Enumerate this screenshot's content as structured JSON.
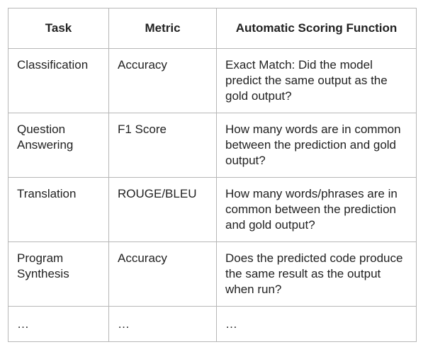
{
  "headers": {
    "task": "Task",
    "metric": "Metric",
    "function": "Automatic Scoring Function"
  },
  "rows": [
    {
      "task": "Classification",
      "metric": "Accuracy",
      "function": "Exact Match: Did the model predict the same output as the gold output?"
    },
    {
      "task": "Question Answering",
      "metric": "F1 Score",
      "function": "How many words are in common between the prediction and gold output?"
    },
    {
      "task": "Translation",
      "metric": "ROUGE/BLEU",
      "function": "How many words/phrases are in common between the prediction and gold output?"
    },
    {
      "task": "Program Synthesis",
      "metric": "Accuracy",
      "function": "Does the predicted code produce the same result as the output when run?"
    },
    {
      "task": "…",
      "metric": "…",
      "function": "…"
    }
  ]
}
